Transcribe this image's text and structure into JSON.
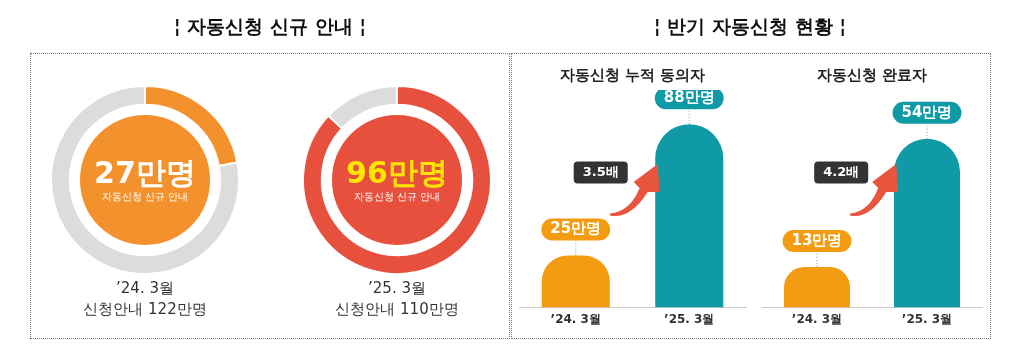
{
  "chart_data": [
    {
      "type": "donut",
      "title": "¦ 자동신청 신규 안내 ¦",
      "categories": [
        null,
        null
      ],
      "values": [
        22,
        78
      ],
      "colors": [
        "#f3922c",
        "#dcdcdc"
      ],
      "annotations": [
        "27만명",
        "자동신청 신규 안내",
        "’24. 3월",
        "신청안내 122만명"
      ]
    },
    {
      "type": "donut",
      "categories": [
        null,
        null
      ],
      "values": [
        87,
        13
      ],
      "colors": [
        "#e8503e",
        "#dcdcdc"
      ],
      "annotations": [
        "96만명",
        "자동신청 신규 안내",
        "’25. 3월",
        "신청안내 110만명"
      ]
    },
    {
      "type": "bar",
      "title": "¦ 반기 자동신청 현황 ¦",
      "subtitle": "자동신청 누적 동의자",
      "categories": [
        "’24. 3월",
        "’25. 3월"
      ],
      "values": [
        25,
        88
      ],
      "colors": [
        "#f39c12",
        "#0f9aa6"
      ],
      "value_labels": [
        "25만명",
        "88만명"
      ],
      "tick_labels": "x",
      "annotations": [
        "3.5배"
      ]
    },
    {
      "type": "bar",
      "title": "자동신청 완료자",
      "categories": [
        "’24. 3월",
        "’25. 3월"
      ],
      "values": [
        13,
        54
      ],
      "colors": [
        "#f39c12",
        "#0f9aa6"
      ],
      "value_labels": [
        "13만명",
        "54만명"
      ],
      "tick_labels": "x",
      "annotations": [
        "4.2배"
      ]
    }
  ]
}
